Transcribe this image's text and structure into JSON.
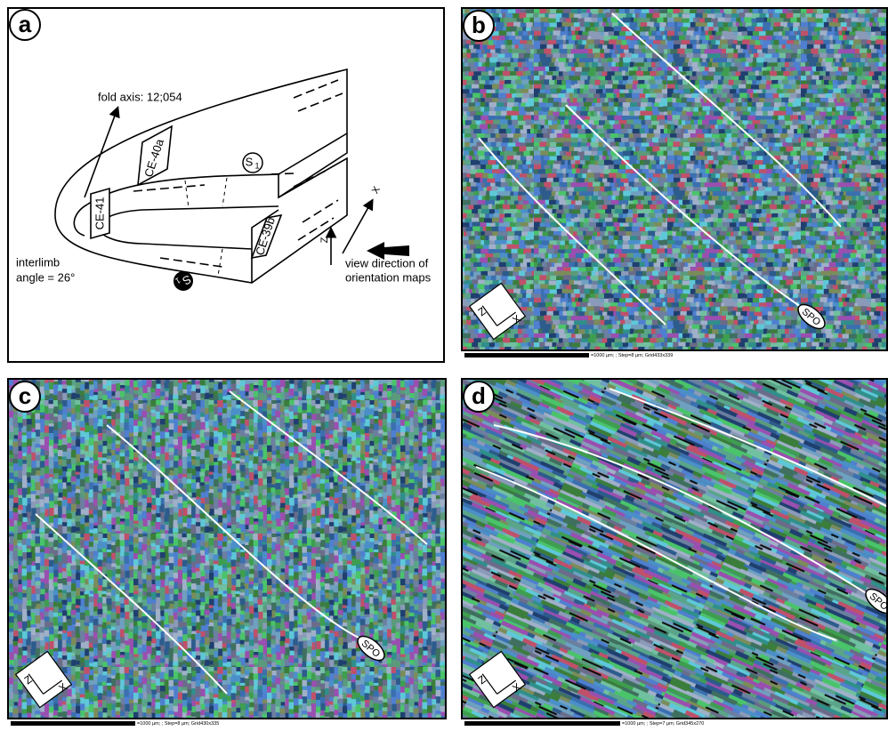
{
  "panels": {
    "a": "a",
    "b": "b",
    "c": "c",
    "d": "d"
  },
  "diagram": {
    "fold_axis": "fold axis: 12;054",
    "samples": [
      "CE-40a",
      "CE-41",
      "CE-39b"
    ],
    "foliation": {
      "symbol": "S",
      "index": "1"
    },
    "interlimb": [
      "interlimb",
      "angle = 26°"
    ],
    "axes": {
      "x": "X",
      "z": "Z"
    },
    "view_direction": [
      "view direction of",
      "orientation maps"
    ]
  },
  "maps": [
    {
      "spo": "SPO",
      "x": "X",
      "z": "Z",
      "scale": "=1000 µm; ; Step=8 µm; Grid433x339"
    },
    {
      "spo": "SPO",
      "x": "X",
      "z": "Z",
      "scale": "=1000 µm; ; Step=8 µm; Grid430x335"
    },
    {
      "spo": "SPO",
      "x": "X",
      "z": "Z",
      "scale": "=1000 µm; ; Step=7 µm; Grid345x270"
    }
  ]
}
